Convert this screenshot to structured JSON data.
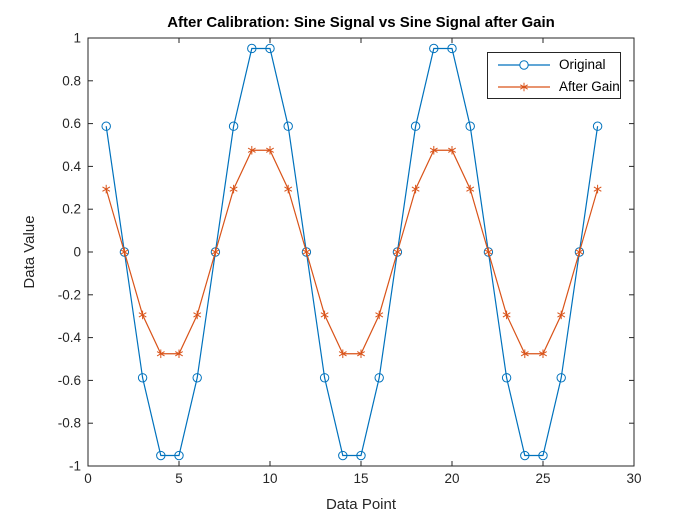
{
  "figure": {
    "background": "#ffffff",
    "axes_color": "#262626",
    "title": "After Calibration: Sine Signal vs Sine Signal after Gain"
  },
  "legend": {
    "position": "top-right",
    "entries": [
      {
        "label": "Original",
        "color": "#0072BD",
        "marker": "circle"
      },
      {
        "label": "After Gain",
        "color": "#D95319",
        "marker": "asterisk"
      }
    ]
  },
  "chart_data": {
    "type": "line",
    "title": "After Calibration: Sine Signal vs Sine Signal after Gain",
    "xlabel": "Data Point",
    "ylabel": "Data Value",
    "xlim": [
      0,
      30
    ],
    "ylim": [
      -1,
      1
    ],
    "x_ticks": [
      0,
      5,
      10,
      15,
      20,
      25,
      30
    ],
    "y_ticks": [
      -1,
      -0.8,
      -0.6,
      -0.4,
      -0.2,
      0,
      0.2,
      0.4,
      0.6,
      0.8,
      1
    ],
    "grid": false,
    "legend_position": "top-right",
    "x": [
      1,
      2,
      3,
      4,
      5,
      6,
      7,
      8,
      9,
      10,
      11,
      12,
      13,
      14,
      15,
      16,
      17,
      18,
      19,
      20,
      21,
      22,
      23,
      24,
      25,
      26,
      27,
      28
    ],
    "series": [
      {
        "name": "Original",
        "color": "#0072BD",
        "marker": "circle",
        "values": [
          0.5878,
          0,
          -0.5878,
          -0.9511,
          -0.9511,
          -0.5878,
          0,
          0.5878,
          0.9511,
          0.9511,
          0.5878,
          0,
          -0.5878,
          -0.9511,
          -0.9511,
          -0.5878,
          0,
          0.5878,
          0.9511,
          0.9511,
          0.5878,
          0,
          -0.5878,
          -0.9511,
          -0.9511,
          -0.5878,
          0,
          0.5878
        ]
      },
      {
        "name": "After Gain",
        "color": "#D95319",
        "marker": "asterisk",
        "values": [
          0.2939,
          0,
          -0.2939,
          -0.4755,
          -0.4755,
          -0.2939,
          0,
          0.2939,
          0.4755,
          0.4755,
          0.2939,
          0,
          -0.2939,
          -0.4755,
          -0.4755,
          -0.2939,
          0,
          0.2939,
          0.4755,
          0.4755,
          0.2939,
          0,
          -0.2939,
          -0.4755,
          -0.4755,
          -0.2939,
          0,
          0.2939
        ]
      }
    ]
  }
}
